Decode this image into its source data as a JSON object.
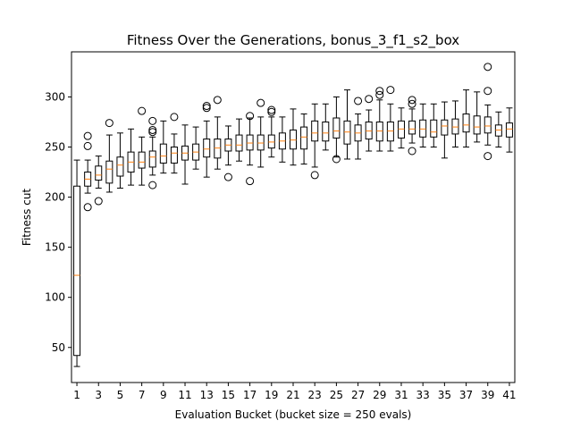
{
  "chart_data": {
    "type": "box",
    "title": "Fitness Over the Generations, bonus_3_f1_s2_box",
    "xlabel": "Evaluation Bucket (bucket size = 250 evals)",
    "ylabel": "Fitness cut",
    "xlim": [
      0.5,
      41.5
    ],
    "ylim": [
      15,
      345
    ],
    "grid": false,
    "xticks": [
      1,
      3,
      5,
      7,
      9,
      11,
      13,
      15,
      17,
      19,
      21,
      23,
      25,
      27,
      29,
      31,
      33,
      35,
      37,
      39,
      41
    ],
    "yticks": [
      50,
      100,
      150,
      200,
      250,
      300
    ],
    "colors": {
      "box": "#000000",
      "median": "#ff7f0e",
      "background": "#ffffff"
    },
    "boxes": [
      {
        "x": 1,
        "min": 31,
        "q1": 42,
        "median": 122,
        "q3": 211,
        "max": 237,
        "outliers": []
      },
      {
        "x": 2,
        "min": 204,
        "q1": 211,
        "median": 218,
        "q3": 225,
        "max": 237,
        "outliers": [
          190,
          251,
          261
        ]
      },
      {
        "x": 3,
        "min": 209,
        "q1": 217,
        "median": 222,
        "q3": 231,
        "max": 241,
        "outliers": [
          196
        ]
      },
      {
        "x": 4,
        "min": 205,
        "q1": 214,
        "median": 228,
        "q3": 236,
        "max": 262,
        "outliers": [
          274
        ]
      },
      {
        "x": 5,
        "min": 209,
        "q1": 221,
        "median": 232,
        "q3": 240,
        "max": 264,
        "outliers": []
      },
      {
        "x": 6,
        "min": 212,
        "q1": 225,
        "median": 235,
        "q3": 245,
        "max": 268,
        "outliers": []
      },
      {
        "x": 7,
        "min": 212,
        "q1": 229,
        "median": 235,
        "q3": 245,
        "max": 260,
        "outliers": [
          286
        ]
      },
      {
        "x": 8,
        "min": 222,
        "q1": 230,
        "median": 240,
        "q3": 246,
        "max": 260,
        "outliers": [
          212,
          265,
          267,
          276
        ]
      },
      {
        "x": 9,
        "min": 224,
        "q1": 234,
        "median": 241,
        "q3": 253,
        "max": 276,
        "outliers": []
      },
      {
        "x": 10,
        "min": 224,
        "q1": 234,
        "median": 244,
        "q3": 250,
        "max": 263,
        "outliers": [
          280
        ]
      },
      {
        "x": 11,
        "min": 213,
        "q1": 237,
        "median": 244,
        "q3": 251,
        "max": 272,
        "outliers": []
      },
      {
        "x": 12,
        "min": 228,
        "q1": 237,
        "median": 245,
        "q3": 253,
        "max": 270,
        "outliers": []
      },
      {
        "x": 13,
        "min": 220,
        "q1": 240,
        "median": 248,
        "q3": 258,
        "max": 276,
        "outliers": [
          289,
          291
        ]
      },
      {
        "x": 14,
        "min": 228,
        "q1": 239,
        "median": 249,
        "q3": 258,
        "max": 280,
        "outliers": [
          297
        ]
      },
      {
        "x": 15,
        "min": 232,
        "q1": 246,
        "median": 252,
        "q3": 258,
        "max": 271,
        "outliers": [
          220
        ]
      },
      {
        "x": 16,
        "min": 236,
        "q1": 246,
        "median": 252,
        "q3": 262,
        "max": 278,
        "outliers": []
      },
      {
        "x": 17,
        "min": 232,
        "q1": 247,
        "median": 254,
        "q3": 262,
        "max": 279,
        "outliers": [
          281,
          216
        ]
      },
      {
        "x": 18,
        "min": 230,
        "q1": 247,
        "median": 254,
        "q3": 262,
        "max": 280,
        "outliers": [
          294
        ]
      },
      {
        "x": 19,
        "min": 240,
        "q1": 249,
        "median": 255,
        "q3": 262,
        "max": 280,
        "outliers": [
          285,
          287
        ]
      },
      {
        "x": 20,
        "min": 235,
        "q1": 248,
        "median": 256,
        "q3": 264,
        "max": 280,
        "outliers": []
      },
      {
        "x": 21,
        "min": 232,
        "q1": 248,
        "median": 257,
        "q3": 267,
        "max": 288,
        "outliers": []
      },
      {
        "x": 22,
        "min": 233,
        "q1": 248,
        "median": 260,
        "q3": 270,
        "max": 283,
        "outliers": []
      },
      {
        "x": 23,
        "min": 230,
        "q1": 256,
        "median": 264,
        "q3": 276,
        "max": 293,
        "outliers": [
          222
        ]
      },
      {
        "x": 24,
        "min": 247,
        "q1": 256,
        "median": 264,
        "q3": 275,
        "max": 293,
        "outliers": []
      },
      {
        "x": 25,
        "min": 240,
        "q1": 259,
        "median": 266,
        "q3": 279,
        "max": 300,
        "outliers": [
          238
        ]
      },
      {
        "x": 26,
        "min": 238,
        "q1": 253,
        "median": 265,
        "q3": 276,
        "max": 307,
        "outliers": []
      },
      {
        "x": 27,
        "min": 238,
        "q1": 256,
        "median": 264,
        "q3": 272,
        "max": 283,
        "outliers": [
          296
        ]
      },
      {
        "x": 28,
        "min": 246,
        "q1": 258,
        "median": 266,
        "q3": 275,
        "max": 287,
        "outliers": [
          298
        ]
      },
      {
        "x": 29,
        "min": 246,
        "q1": 256,
        "median": 266,
        "q3": 275,
        "max": 297,
        "outliers": [
          302,
          306
        ]
      },
      {
        "x": 30,
        "min": 246,
        "q1": 256,
        "median": 266,
        "q3": 275,
        "max": 293,
        "outliers": [
          307
        ]
      },
      {
        "x": 31,
        "min": 249,
        "q1": 259,
        "median": 268,
        "q3": 276,
        "max": 289,
        "outliers": []
      },
      {
        "x": 32,
        "min": 254,
        "q1": 263,
        "median": 268,
        "q3": 276,
        "max": 288,
        "outliers": [
          246,
          293,
          297
        ]
      },
      {
        "x": 33,
        "min": 250,
        "q1": 260,
        "median": 268,
        "q3": 277,
        "max": 293,
        "outliers": []
      },
      {
        "x": 34,
        "min": 250,
        "q1": 260,
        "median": 265,
        "q3": 277,
        "max": 293,
        "outliers": []
      },
      {
        "x": 35,
        "min": 239,
        "q1": 262,
        "median": 271,
        "q3": 277,
        "max": 295,
        "outliers": []
      },
      {
        "x": 36,
        "min": 250,
        "q1": 263,
        "median": 270,
        "q3": 278,
        "max": 296,
        "outliers": []
      },
      {
        "x": 37,
        "min": 250,
        "q1": 265,
        "median": 272,
        "q3": 283,
        "max": 307,
        "outliers": []
      },
      {
        "x": 38,
        "min": 255,
        "q1": 263,
        "median": 270,
        "q3": 281,
        "max": 305,
        "outliers": []
      },
      {
        "x": 39,
        "min": 252,
        "q1": 264,
        "median": 271,
        "q3": 280,
        "max": 292,
        "outliers": [
          241,
          306,
          330
        ]
      },
      {
        "x": 40,
        "min": 250,
        "q1": 261,
        "median": 267,
        "q3": 272,
        "max": 285,
        "outliers": []
      },
      {
        "x": 41,
        "min": 245,
        "q1": 260,
        "median": 268,
        "q3": 274,
        "max": 289,
        "outliers": []
      }
    ]
  }
}
